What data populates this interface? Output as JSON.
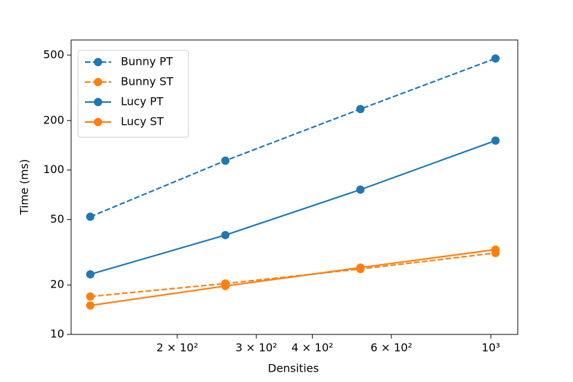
{
  "chart_data": {
    "type": "line",
    "xlabel": "Densities",
    "ylabel": "Time (ms)",
    "xscale": "log",
    "yscale": "log",
    "x": [
      128,
      256,
      512,
      1024
    ],
    "xlim": [
      116,
      1148
    ],
    "ylim": [
      10,
      618
    ],
    "xticks": [
      {
        "value": 200,
        "label": "2 × 10²"
      },
      {
        "value": 300,
        "label": "3 × 10²"
      },
      {
        "value": 400,
        "label": "4 × 10²"
      },
      {
        "value": 600,
        "label": "6 × 10²"
      },
      {
        "value": 1000,
        "label": "10³"
      }
    ],
    "yticks": [
      10,
      20,
      50,
      100,
      200,
      500
    ],
    "legend": "upper left",
    "series": [
      {
        "name": "Bunny PT",
        "color": "#1f77b4",
        "linestyle": "dashed",
        "values": [
          52,
          114,
          235,
          477
        ]
      },
      {
        "name": "Bunny ST",
        "color": "#ff7f0e",
        "linestyle": "dashed",
        "values": [
          17.0,
          20.4,
          25.0,
          31.3
        ]
      },
      {
        "name": "Lucy PT",
        "color": "#1f77b4",
        "linestyle": "solid",
        "values": [
          23.2,
          40.2,
          76,
          151
        ]
      },
      {
        "name": "Lucy ST",
        "color": "#ff7f0e",
        "linestyle": "solid",
        "values": [
          15.0,
          19.7,
          25.5,
          32.8
        ]
      }
    ]
  }
}
